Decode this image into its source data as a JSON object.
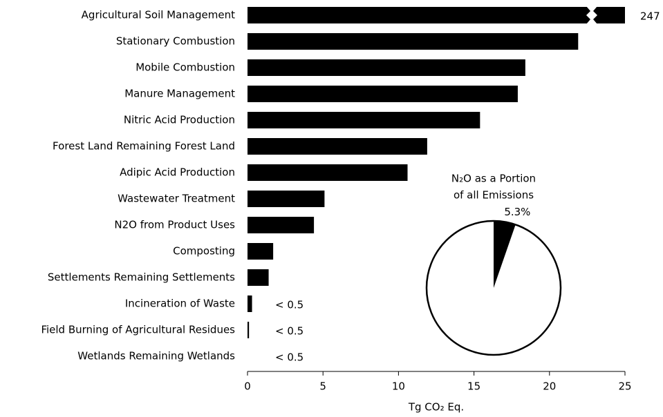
{
  "chart_data": [
    {
      "type": "bar",
      "orientation": "horizontal",
      "color": "#000000",
      "categories": [
        "Agricultural Soil Management",
        "Stationary Combustion",
        "Mobile Combustion",
        "Manure Management",
        "Nitric Acid Production",
        "Forest Land Remaining Forest Land",
        "Adipic Acid Production",
        "Wastewater Treatment",
        "N2O from Product Uses",
        "Composting",
        "Settlements Remaining Settlements",
        "Incineration of Waste",
        "Field Burning of Agricultural Residues",
        "Wetlands Remaining Wetlands"
      ],
      "values": [
        247,
        21.9,
        18.4,
        17.9,
        15.4,
        11.9,
        10.6,
        5.1,
        4.4,
        1.7,
        1.4,
        0.3,
        0.1,
        0
      ],
      "value_labels": [
        "247",
        null,
        null,
        null,
        null,
        null,
        null,
        null,
        null,
        null,
        null,
        "< 0.5",
        "< 0.5",
        "< 0.5"
      ],
      "xlim": [
        0,
        25
      ],
      "xticks": [
        0,
        5,
        10,
        15,
        20,
        25
      ],
      "x_label": "Tg CO₂ Eq."
    },
    {
      "type": "pie",
      "title": [
        "N₂O as a Portion",
        "of all Emissions"
      ],
      "values": [
        5.3,
        94.7
      ],
      "value_labels": [
        "5.3%",
        null
      ],
      "colors": [
        "#000000",
        "#ffffff"
      ]
    }
  ]
}
